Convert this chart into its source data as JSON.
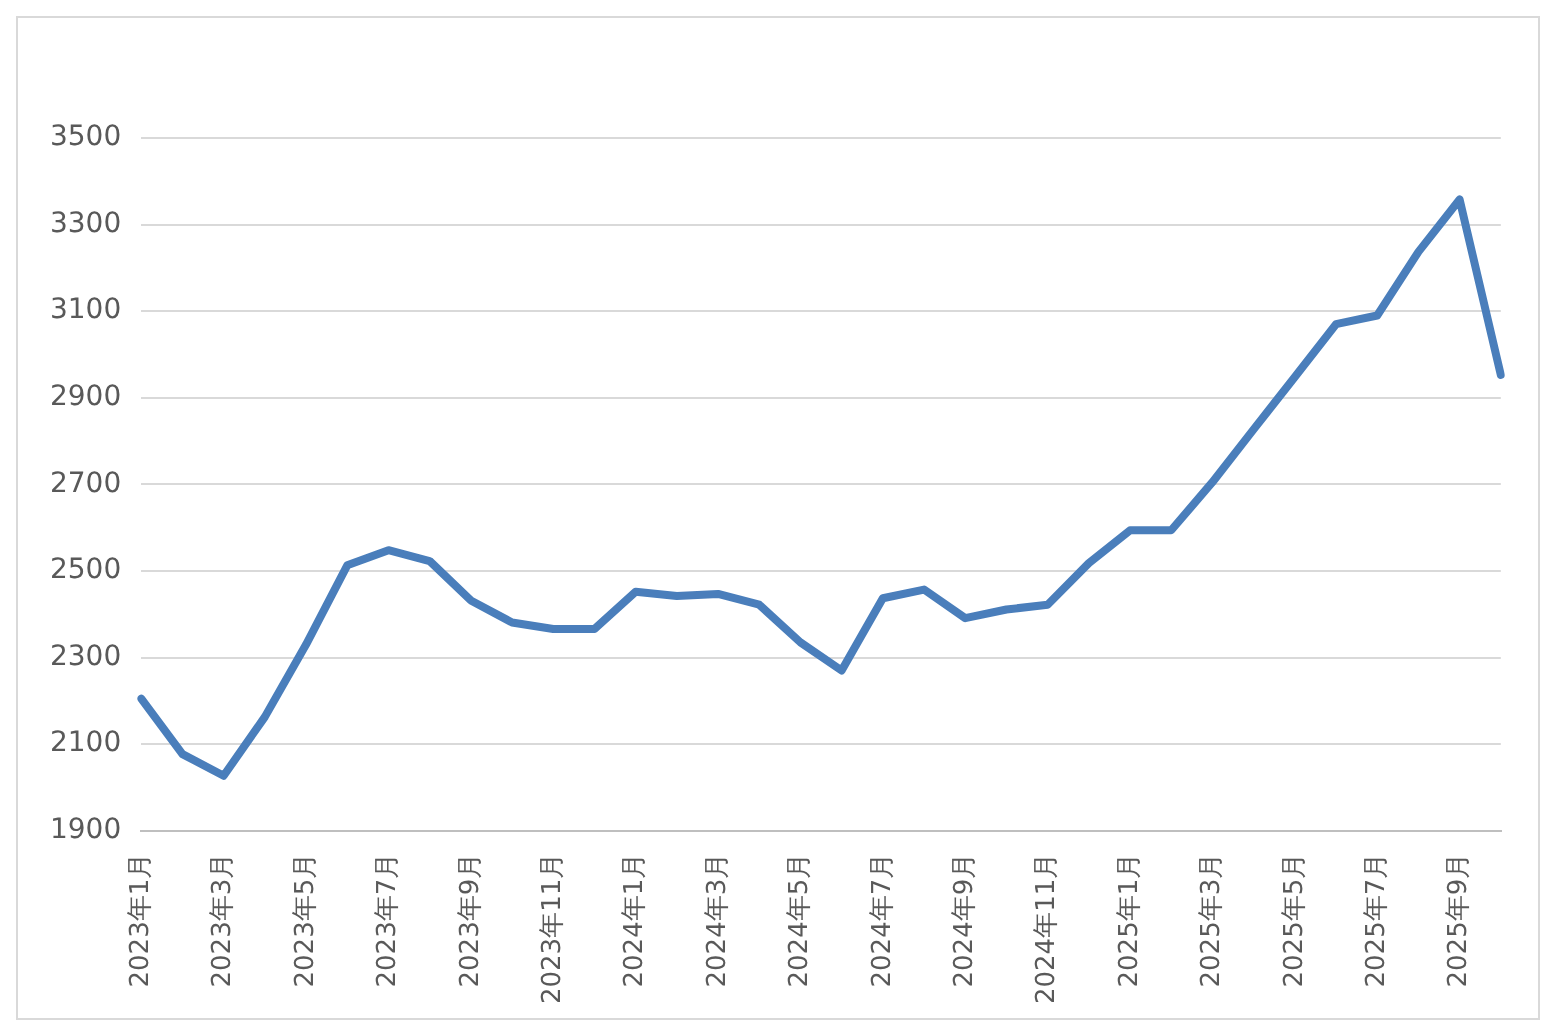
{
  "chart_data": {
    "type": "line",
    "categories": [
      "2023年1月",
      null,
      "2023年3月",
      null,
      "2023年5月",
      null,
      "2023年7月",
      null,
      "2023年9月",
      null,
      "2023年11月",
      null,
      "2024年1月",
      null,
      "2024年3月",
      null,
      "2024年5月",
      null,
      "2024年7月",
      null,
      "2024年9月",
      null,
      "2024年11月",
      null,
      "2025年1月",
      null,
      "2025年3月",
      null,
      "2025年5月",
      null,
      "2025年7月",
      null,
      "2025年9月",
      null
    ],
    "series": [
      {
        "color": "#4a7ebb",
        "values": [
          2205,
          2077,
          2027,
          2163,
          2330,
          2513,
          2548,
          2523,
          2432,
          2381,
          2366,
          2366,
          2452,
          2442,
          2447,
          2422,
          2335,
          2270,
          2437,
          2457,
          2391,
          2411,
          2422,
          2518,
          2594,
          2594,
          2705,
          2827,
          2948,
          3070,
          3090,
          3237,
          3358,
          2953
        ]
      }
    ],
    "ylim": [
      1900,
      3500
    ],
    "yticks": [
      1900,
      2100,
      2300,
      2500,
      2700,
      2900,
      3100,
      3300,
      3500
    ],
    "grid": "y",
    "legend": false,
    "marker": "none",
    "line_style": "solid"
  }
}
